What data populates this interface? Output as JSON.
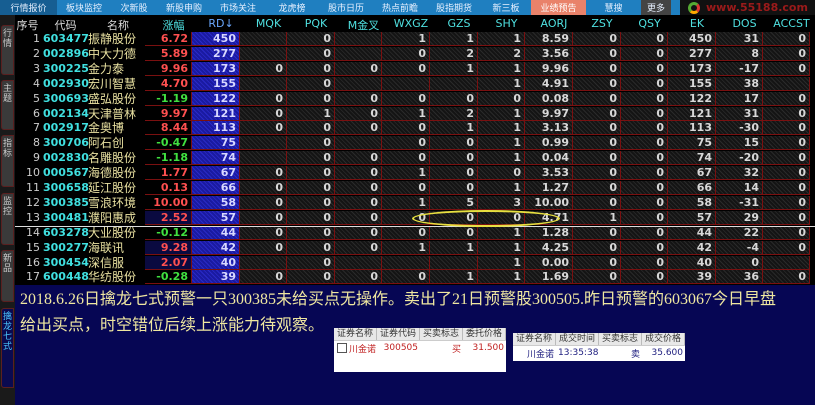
{
  "top_tabs": [
    "行情报价",
    "板块监控",
    "次新股",
    "新股申购",
    "市场关注",
    "龙虎榜",
    "股市日历",
    "热点前瞻",
    "股指期货",
    "新三板",
    "业绩预告",
    "慧搜",
    "更多"
  ],
  "active_top_tab": "业绩预告",
  "logo_text": "www.55188.com",
  "side_tabs": [
    "行情",
    "主题",
    "指标",
    "监控",
    "新品",
    "擒龙七式"
  ],
  "active_side_tab": "擒龙七式",
  "columns": [
    "序号",
    "代码",
    "名称",
    "涨幅",
    "RD↓",
    "MQK",
    "PQK",
    "M金叉",
    "WXGZ",
    "GZS",
    "SHY",
    "AORJ",
    "ZSY",
    "QSY",
    "EK",
    "DOS",
    "ACCST"
  ],
  "rows": [
    [
      "1",
      "603477",
      "振静股份",
      "6.72",
      "450",
      "",
      "0",
      "",
      "1",
      "1",
      "1",
      "8.59",
      "0",
      "0",
      "450",
      "31",
      "0"
    ],
    [
      "2",
      "002896",
      "中大力德",
      "5.89",
      "277",
      "",
      "0",
      "",
      "0",
      "2",
      "2",
      "3.56",
      "0",
      "0",
      "277",
      "8",
      "0"
    ],
    [
      "3",
      "300225",
      "金力泰",
      "9.96",
      "173",
      "0",
      "0",
      "0",
      "0",
      "1",
      "1",
      "9.96",
      "0",
      "0",
      "173",
      "-17",
      "0"
    ],
    [
      "4",
      "002930",
      "宏川智慧",
      "4.70",
      "155",
      "",
      "0",
      "",
      "",
      "",
      "1",
      "4.91",
      "0",
      "0",
      "155",
      "38",
      ""
    ],
    [
      "5",
      "300693",
      "盛弘股份",
      "-1.19",
      "122",
      "0",
      "0",
      "0",
      "0",
      "0",
      "0",
      "0.08",
      "0",
      "0",
      "122",
      "17",
      "0"
    ],
    [
      "6",
      "002134",
      "天津普林",
      "9.97",
      "121",
      "0",
      "1",
      "0",
      "1",
      "2",
      "1",
      "9.97",
      "0",
      "0",
      "121",
      "31",
      "0"
    ],
    [
      "7",
      "002917",
      "金奥博",
      "8.44",
      "113",
      "0",
      "0",
      "0",
      "0",
      "1",
      "1",
      "3.13",
      "0",
      "0",
      "113",
      "-30",
      "0"
    ],
    [
      "8",
      "300706",
      "阿石创",
      "-0.47",
      "75",
      "",
      "0",
      "",
      "0",
      "0",
      "1",
      "0.99",
      "0",
      "0",
      "75",
      "15",
      "0"
    ],
    [
      "9",
      "002830",
      "名雕股份",
      "-1.18",
      "74",
      "",
      "0",
      "0",
      "0",
      "0",
      "1",
      "0.04",
      "0",
      "0",
      "74",
      "-20",
      "0"
    ],
    [
      "10",
      "000567",
      "海德股份",
      "1.77",
      "67",
      "0",
      "0",
      "0",
      "1",
      "0",
      "0",
      "3.53",
      "0",
      "0",
      "67",
      "32",
      "0"
    ],
    [
      "11",
      "300658",
      "延江股份",
      "0.13",
      "66",
      "0",
      "0",
      "0",
      "0",
      "0",
      "1",
      "1.27",
      "0",
      "0",
      "66",
      "14",
      "0"
    ],
    [
      "12",
      "300385",
      "雪浪环境",
      "10.00",
      "58",
      "0",
      "0",
      "0",
      "1",
      "5",
      "3",
      "10.00",
      "0",
      "0",
      "58",
      "-31",
      "0"
    ],
    [
      "13",
      "300481",
      "濮阳惠成",
      "2.52",
      "57",
      "0",
      "0",
      "0",
      "0",
      "0",
      "0",
      "4.71",
      "1",
      "0",
      "57",
      "29",
      "0"
    ],
    [
      "14",
      "603278",
      "大业股份",
      "-0.12",
      "44",
      "0",
      "0",
      "0",
      "0",
      "0",
      "1",
      "1.28",
      "0",
      "0",
      "44",
      "22",
      "0"
    ],
    [
      "15",
      "300277",
      "海联讯",
      "9.28",
      "42",
      "0",
      "0",
      "0",
      "1",
      "1",
      "1",
      "4.25",
      "0",
      "0",
      "42",
      "-4",
      "0"
    ],
    [
      "16",
      "300454",
      "深信服",
      "2.07",
      "40",
      "",
      "0",
      "",
      "",
      "",
      "1",
      "0.00",
      "0",
      "0",
      "40",
      "0",
      ""
    ],
    [
      "17",
      "600448",
      "华纺股份",
      "-0.28",
      "39",
      "0",
      "0",
      "0",
      "0",
      "1",
      "1",
      "1.69",
      "0",
      "0",
      "39",
      "36",
      "0"
    ]
  ],
  "note_line1": "2018.6.26日擒龙七式预警一只300385未给买点无操作。卖出了21日预警股300505.昨日预警的603067今日早盘",
  "note_line2": "给出买点，时空错位后续上涨能力待观察。",
  "order_table": {
    "headers": [
      "证券名称",
      "证券代码",
      "买卖标志",
      "委托价格"
    ],
    "row": [
      "川金诺",
      "300505",
      "买",
      "31.500"
    ]
  },
  "trade_table": {
    "headers": [
      "证券名称",
      "成交时间",
      "买卖标志",
      "成交价格"
    ],
    "row": [
      "川金诺",
      "13:35:38",
      "卖",
      "35.600"
    ]
  },
  "colors": {
    "up": "#ff5050",
    "down": "#40e040",
    "highlight": "#e8e040",
    "active_tab": "#e9826a"
  }
}
